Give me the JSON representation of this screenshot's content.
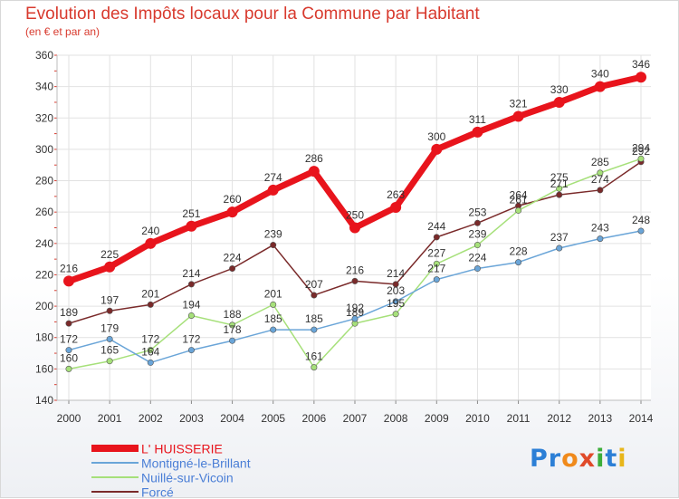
{
  "chart_data": {
    "type": "line",
    "title": "Evolution des Impôts locaux pour la Commune par Habitant",
    "subtitle": "(en € et par an)",
    "x": [
      "2000",
      "2001",
      "2002",
      "2003",
      "2004",
      "2005",
      "2006",
      "2007",
      "2008",
      "2009",
      "2010",
      "2011",
      "2012",
      "2013",
      "2014"
    ],
    "ylim": [
      140,
      360
    ],
    "yticks": [
      140,
      160,
      180,
      200,
      220,
      240,
      260,
      280,
      300,
      320,
      340,
      360
    ],
    "grid": true,
    "legend_position": "bottom-left",
    "series": [
      {
        "name": "L' HUISSERIE",
        "color": "#e8141c",
        "values": [
          216,
          225,
          240,
          251,
          260,
          274,
          286,
          250,
          263,
          300,
          311,
          321,
          330,
          340,
          346
        ]
      },
      {
        "name": "Montigné-le-Brillant",
        "color": "#6aa5d8",
        "values": [
          172,
          179,
          164,
          172,
          178,
          185,
          185,
          192,
          203,
          217,
          224,
          228,
          237,
          243,
          248
        ]
      },
      {
        "name": "Nuillé-sur-Vicoin",
        "color": "#a6e07a",
        "values": [
          160,
          165,
          172,
          194,
          188,
          201,
          161,
          189,
          195,
          227,
          239,
          261,
          275,
          285,
          294
        ]
      },
      {
        "name": "Forcé",
        "color": "#7a2a2a",
        "values": [
          189,
          197,
          201,
          214,
          224,
          239,
          207,
          216,
          214,
          244,
          253,
          264,
          271,
          274,
          292
        ]
      }
    ]
  },
  "logo": {
    "letters": [
      "Pr",
      "o",
      "x",
      "i",
      "t",
      "i"
    ]
  }
}
